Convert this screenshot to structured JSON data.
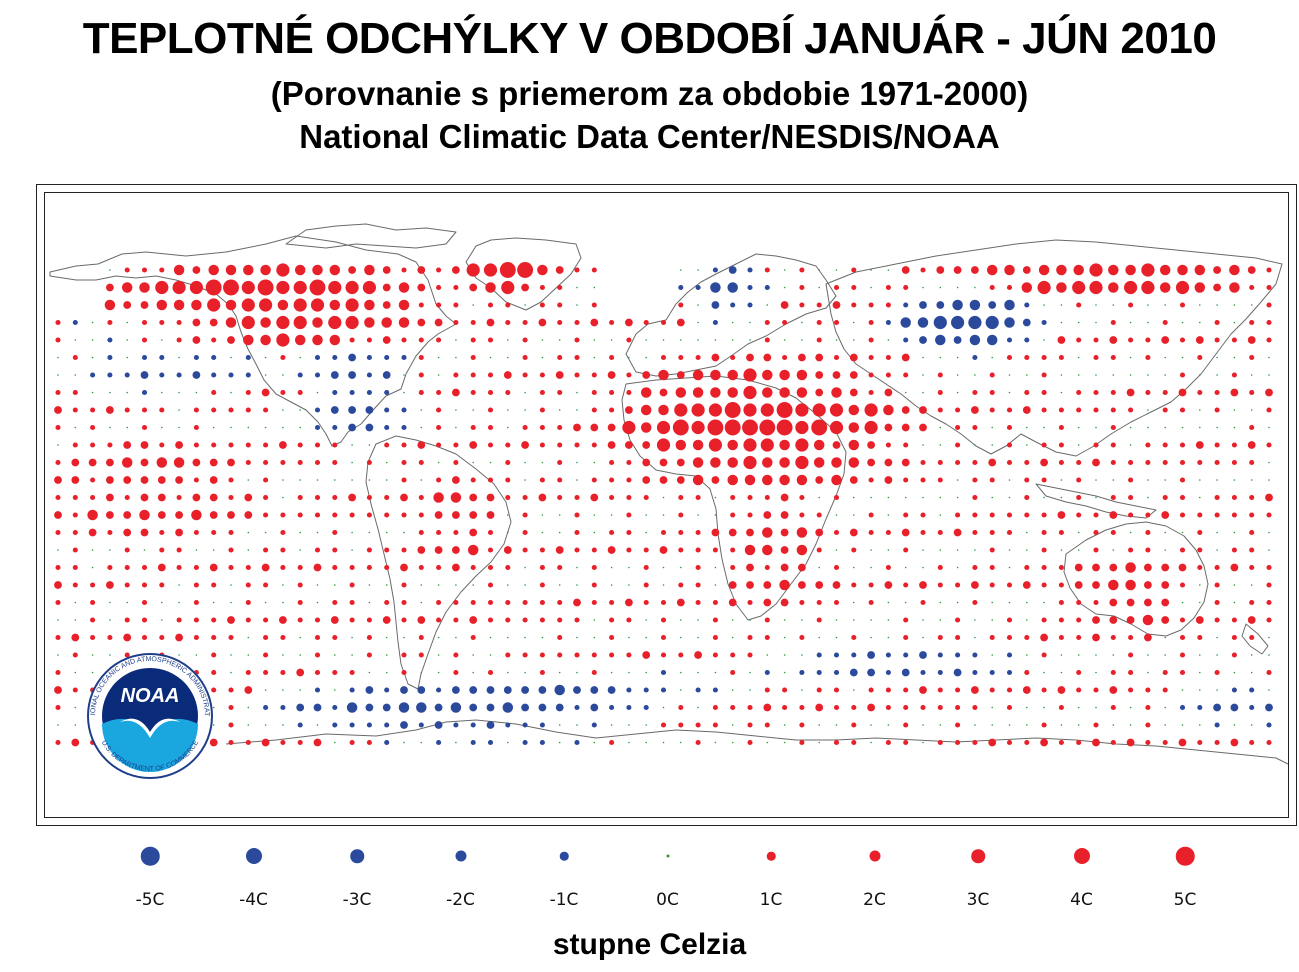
{
  "header": {
    "title": "TEPLOTNÉ ODCHÝLKY V OBDOBÍ JANUÁR - JÚN 2010",
    "subtitle": "(Porovnanie s priemerom za obdobie 1971-2000)",
    "source": "National Climatic Data Center/NESDIS/NOAA"
  },
  "logo": {
    "text": "NOAA",
    "ring_text": "NATIONAL OCEANIC AND ATMOSPHERIC ADMINISTRATION",
    "bottom_text": "U.S. DEPARTMENT OF COMMERCE"
  },
  "map": {
    "type": "proportional-symbol world map",
    "warm_color": "#e8202a",
    "cold_color": "#2b4a9c",
    "zero_color": "#2a9a3a",
    "land_outline_color": "#555555",
    "anomaly_regions": [
      {
        "region": "Canada / Northern North America",
        "anomaly_c": 4
      },
      {
        "region": "Greenland",
        "anomaly_c": 4
      },
      {
        "region": "North Africa / Middle East",
        "anomaly_c": 4
      },
      {
        "region": "Northern Siberia",
        "anomaly_c": 3
      },
      {
        "region": "Central Russia",
        "anomaly_c": -3
      },
      {
        "region": "Scandinavia / Northern Europe",
        "anomaly_c": -2
      },
      {
        "region": "Southeastern United States",
        "anomaly_c": -2
      },
      {
        "region": "Southern Ocean",
        "anomaly_c": -2
      },
      {
        "region": "Tropical Atlantic",
        "anomaly_c": 2
      },
      {
        "region": "Tropical Pacific",
        "anomaly_c": 2
      },
      {
        "region": "Australia",
        "anomaly_c": 2
      },
      {
        "region": "South America",
        "anomaly_c": 2
      }
    ]
  },
  "legend": {
    "items": [
      {
        "label": "-5C",
        "value": -5
      },
      {
        "label": "-4C",
        "value": -4
      },
      {
        "label": "-3C",
        "value": -3
      },
      {
        "label": "-2C",
        "value": -2
      },
      {
        "label": "-1C",
        "value": -1
      },
      {
        "label": "0C",
        "value": 0
      },
      {
        "label": "1C",
        "value": 1
      },
      {
        "label": "2C",
        "value": 2
      },
      {
        "label": "3C",
        "value": 3
      },
      {
        "label": "4C",
        "value": 4
      },
      {
        "label": "5C",
        "value": 5
      }
    ],
    "unit_label": "stupne Celzia"
  }
}
